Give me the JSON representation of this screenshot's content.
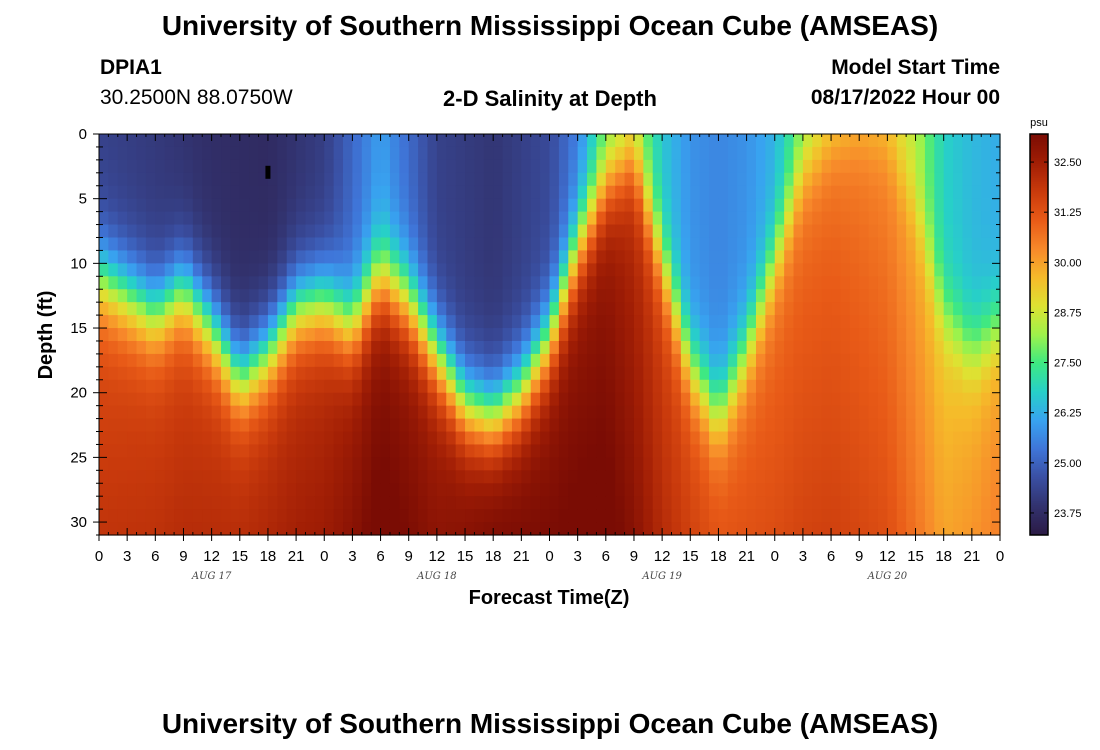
{
  "header": {
    "title": "University of Southern Mississippi Ocean Cube (AMSEAS)",
    "station_id": "DPIA1",
    "station_coords": "30.2500N  88.0750W",
    "plot_title": "2-D Salinity at Depth",
    "model_label": "Model Start Time",
    "model_time": "08/17/2022 Hour 00"
  },
  "footer": {
    "title": "University of Southern Mississippi Ocean Cube (AMSEAS)"
  },
  "chart_data": {
    "type": "heatmap",
    "title": "2-D Salinity at Depth",
    "xlabel": "Forecast Time(Z)",
    "ylabel": "Depth (ft)",
    "x_ticks": [
      "0",
      "3",
      "6",
      "9",
      "12",
      "15",
      "18",
      "21",
      "0",
      "3",
      "6",
      "9",
      "12",
      "15",
      "18",
      "21",
      "0",
      "3",
      "6",
      "9",
      "12",
      "15",
      "18",
      "21",
      "0",
      "3",
      "6",
      "9",
      "12",
      "15",
      "18",
      "21",
      "0"
    ],
    "x_dates": [
      "AUG 17",
      "AUG 18",
      "AUG 19",
      "AUG 20"
    ],
    "x_range_hours": [
      0,
      96
    ],
    "y_ticks": [
      "0",
      "5",
      "10",
      "15",
      "20",
      "25",
      "30"
    ],
    "y_range_ft": [
      0,
      31
    ],
    "colorbar": {
      "unit": "psu",
      "ticks": [
        "32.50",
        "31.25",
        "30.00",
        "28.75",
        "27.50",
        "26.25",
        "25.00",
        "23.75"
      ],
      "range": [
        23.2,
        33.2
      ]
    },
    "interface_depth_by_hour": [
      [
        0,
        11
      ],
      [
        3,
        12.5
      ],
      [
        6,
        14
      ],
      [
        9,
        12
      ],
      [
        12,
        15
      ],
      [
        15,
        19
      ],
      [
        18,
        17
      ],
      [
        21,
        13.5
      ],
      [
        24,
        13
      ],
      [
        27,
        15
      ],
      [
        30,
        11
      ],
      [
        33,
        13
      ],
      [
        36,
        17
      ],
      [
        39,
        21
      ],
      [
        42,
        22
      ],
      [
        45,
        20
      ],
      [
        48,
        16
      ],
      [
        51,
        9
      ],
      [
        54,
        4
      ],
      [
        57,
        2
      ],
      [
        60,
        10
      ],
      [
        63,
        18
      ],
      [
        66,
        22
      ],
      [
        69,
        17
      ],
      [
        72,
        10
      ],
      [
        75,
        3
      ],
      [
        78,
        0.5
      ],
      [
        81,
        0
      ],
      [
        84,
        1
      ],
      [
        87,
        6
      ],
      [
        90,
        14
      ],
      [
        93,
        17
      ],
      [
        96,
        15
      ]
    ],
    "surface_salinity_by_hour": [
      [
        0,
        24.3
      ],
      [
        6,
        24.1
      ],
      [
        12,
        23.8
      ],
      [
        18,
        23.7
      ],
      [
        24,
        24.2
      ],
      [
        30,
        26.0
      ],
      [
        36,
        24.3
      ],
      [
        42,
        24.0
      ],
      [
        48,
        24.5
      ],
      [
        51,
        25.5
      ],
      [
        54,
        27.5
      ],
      [
        57,
        28.2
      ],
      [
        60,
        26.6
      ],
      [
        63,
        25.8
      ],
      [
        66,
        25.6
      ],
      [
        69,
        25.8
      ],
      [
        72,
        26.3
      ],
      [
        75,
        27.8
      ],
      [
        78,
        28.6
      ],
      [
        81,
        29.1
      ],
      [
        84,
        29.2
      ],
      [
        87,
        28.4
      ],
      [
        90,
        26.8
      ],
      [
        93,
        26.4
      ],
      [
        96,
        26.2
      ]
    ],
    "deep_salinity_by_hour": [
      [
        0,
        31.5
      ],
      [
        12,
        31.8
      ],
      [
        24,
        32.2
      ],
      [
        30,
        33.0
      ],
      [
        36,
        32.6
      ],
      [
        42,
        33.1
      ],
      [
        48,
        32.9
      ],
      [
        54,
        32.8
      ],
      [
        60,
        31.7
      ],
      [
        66,
        31.1
      ],
      [
        72,
        30.9
      ],
      [
        78,
        30.9
      ],
      [
        84,
        30.6
      ],
      [
        90,
        29.6
      ],
      [
        96,
        30.2
      ]
    ],
    "annotations": [
      {
        "type": "marker",
        "x_hour": 18,
        "depth_ft": 3
      }
    ]
  },
  "colors": {
    "scale": [
      "#2b1a45",
      "#32326e",
      "#3a4fa2",
      "#3f75d8",
      "#38a3f0",
      "#27d0c8",
      "#3ee882",
      "#9ff24a",
      "#dee232",
      "#f6ba2a",
      "#f7882a",
      "#e85a17",
      "#c93a0c",
      "#a11e05",
      "#7a0c04"
    ]
  }
}
